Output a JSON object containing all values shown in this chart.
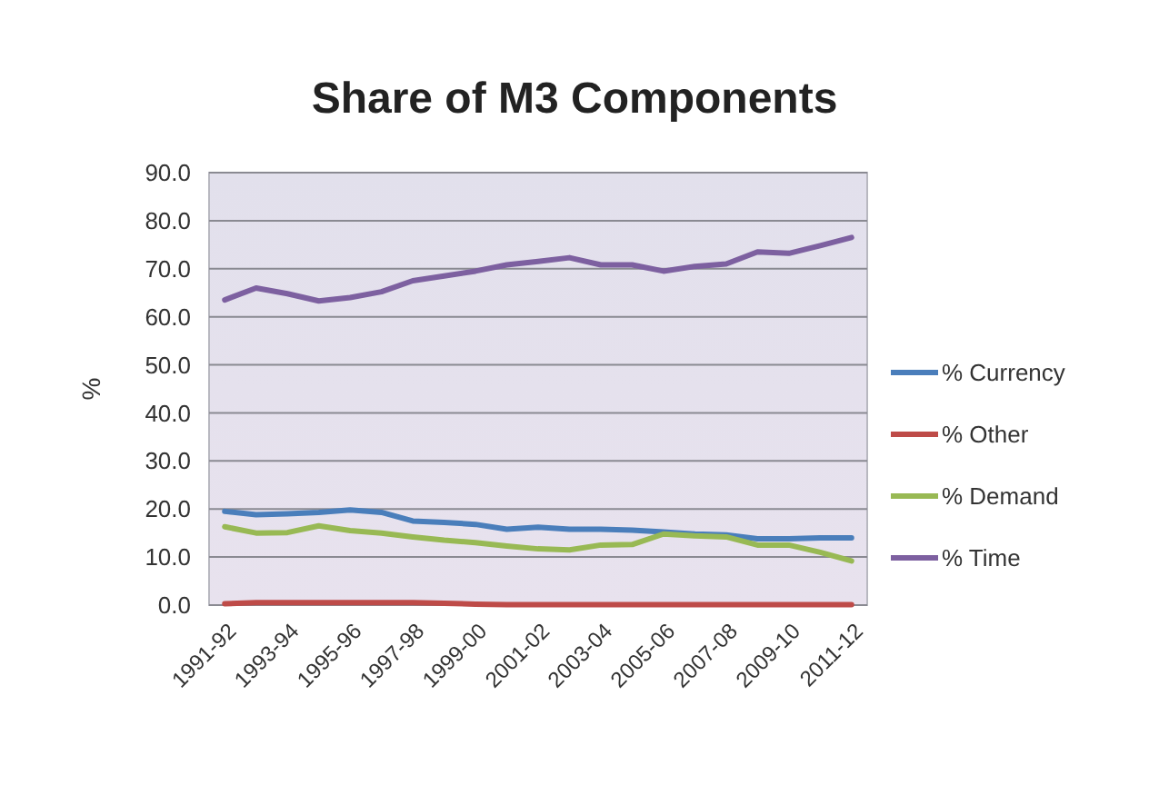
{
  "chart_data": {
    "type": "line",
    "title": "Share of M3 Components",
    "ylabel": "%",
    "categories": [
      "1991-92",
      null,
      "1993-94",
      null,
      "1995-96",
      null,
      "1997-98",
      null,
      "1999-00",
      null,
      "2001-02",
      null,
      "2003-04",
      null,
      "2005-06",
      null,
      "2007-08",
      null,
      "2009-10",
      null,
      "2011-12"
    ],
    "series": [
      {
        "name": "% Currency",
        "color": "#4a7ebb",
        "values": [
          19.5,
          18.8,
          19,
          19.3,
          19.8,
          19.3,
          17.5,
          17.2,
          16.8,
          15.8,
          16.2,
          15.8,
          15.8,
          15.6,
          15.2,
          14.8,
          14.6,
          13.8,
          13.8,
          14,
          14
        ]
      },
      {
        "name": "% Other",
        "color": "#be4b48",
        "values": [
          0.3,
          0.5,
          0.5,
          0.5,
          0.5,
          0.5,
          0.5,
          0.4,
          0.2,
          0.1,
          0.1,
          0.1,
          0.1,
          0.1,
          0.1,
          0.1,
          0.1,
          0.1,
          0.1,
          0.1,
          0.1
        ]
      },
      {
        "name": "% Demand",
        "color": "#98b954",
        "values": [
          16.3,
          15,
          15.1,
          16.5,
          15.5,
          15,
          14.2,
          13.5,
          13,
          12.3,
          11.7,
          11.5,
          12.5,
          12.6,
          14.8,
          14.4,
          14.2,
          12.5,
          12.5,
          11,
          9.2
        ]
      },
      {
        "name": "% Time",
        "color": "#7d60a0",
        "values": [
          63.5,
          66,
          64.8,
          63.3,
          64,
          65.2,
          67.5,
          68.5,
          69.5,
          70.8,
          71.5,
          72.3,
          70.8,
          70.8,
          69.5,
          70.5,
          71,
          73.5,
          73.2,
          74.8,
          76.5
        ]
      }
    ],
    "ylim": [
      0,
      90
    ],
    "yticks": [
      {
        "value": 0,
        "label": "0.0"
      },
      {
        "value": 10,
        "label": "10.0"
      },
      {
        "value": 20,
        "label": "20.0"
      },
      {
        "value": 30,
        "label": "30.0"
      },
      {
        "value": 40,
        "label": "40.0"
      },
      {
        "value": 50,
        "label": "50.0"
      },
      {
        "value": 60,
        "label": "60.0"
      },
      {
        "value": 70,
        "label": "70.0"
      },
      {
        "value": 80,
        "label": "80.0"
      },
      {
        "value": 90,
        "label": "90.0"
      }
    ],
    "grid": "y",
    "legend": "right",
    "marker": "none",
    "line_style": "solid"
  }
}
